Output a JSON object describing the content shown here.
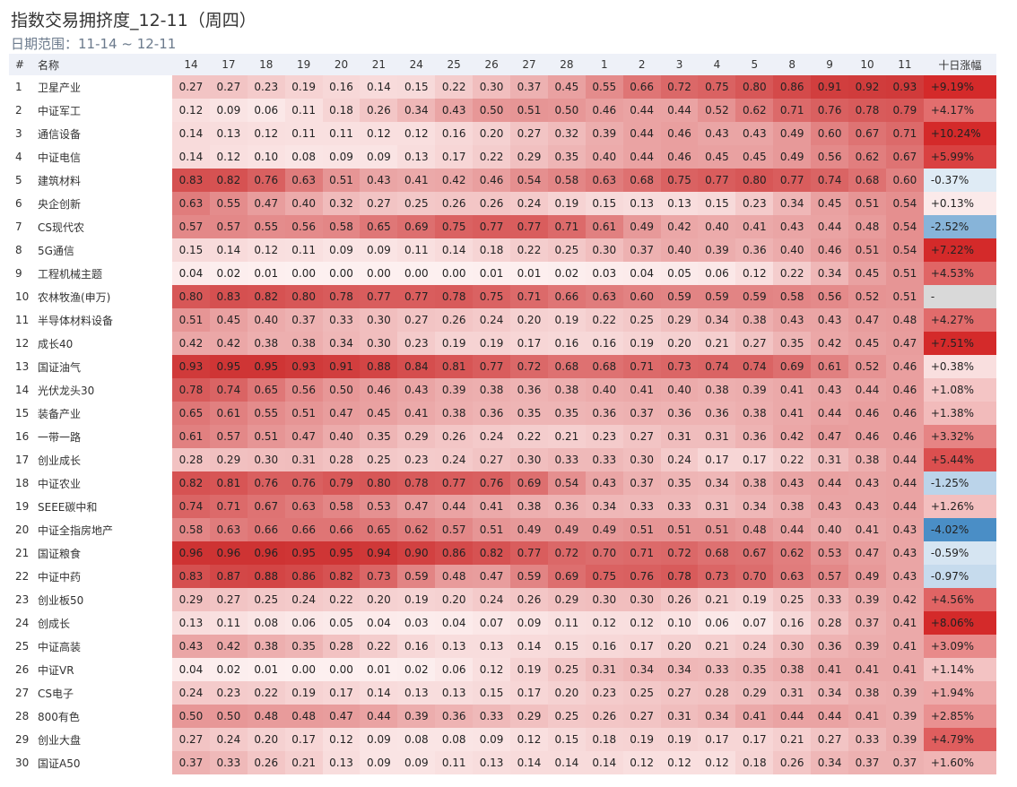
{
  "title": "指数交易拥挤度_12-11（周四）",
  "subtitle": "日期范围：11-14 ~ 12-11",
  "chart_data": {
    "type": "heatmap",
    "title": "指数交易拥挤度_12-11（周四）",
    "subtitle": "日期范围：11-14 ~ 12-11",
    "headers": {
      "index": "#",
      "name": "名称",
      "change": "十日涨幅"
    },
    "dates": [
      "14",
      "17",
      "18",
      "19",
      "20",
      "21",
      "24",
      "25",
      "26",
      "27",
      "28",
      "1",
      "2",
      "3",
      "4",
      "5",
      "8",
      "9",
      "10",
      "11"
    ],
    "colors": {
      "cell_low": "#fdf0f0",
      "cell_high": "#cc2a2a",
      "up_strong": "#d42a2a",
      "down_strong": "#4a8ec6",
      "neutral": "#d9d9d9",
      "header_bg": "#eef1f8"
    },
    "rows": [
      {
        "idx": "1",
        "name": "卫星产业",
        "values": [
          0.27,
          0.27,
          0.23,
          0.19,
          0.16,
          0.14,
          0.15,
          0.22,
          0.3,
          0.37,
          0.45,
          0.55,
          0.66,
          0.72,
          0.75,
          0.8,
          0.86,
          0.91,
          0.92,
          0.93
        ],
        "change_text": "+9.19%",
        "change": 9.19
      },
      {
        "idx": "2",
        "name": "中证军工",
        "values": [
          0.12,
          0.09,
          0.06,
          0.11,
          0.18,
          0.26,
          0.34,
          0.43,
          0.5,
          0.51,
          0.5,
          0.46,
          0.44,
          0.44,
          0.52,
          0.62,
          0.71,
          0.76,
          0.78,
          0.79
        ],
        "change_text": "+4.17%",
        "change": 4.17
      },
      {
        "idx": "3",
        "name": "通信设备",
        "values": [
          0.14,
          0.13,
          0.12,
          0.11,
          0.11,
          0.12,
          0.12,
          0.16,
          0.2,
          0.27,
          0.32,
          0.39,
          0.44,
          0.46,
          0.43,
          0.43,
          0.49,
          0.6,
          0.67,
          0.71
        ],
        "change_text": "+10.24%",
        "change": 10.24
      },
      {
        "idx": "4",
        "name": "中证电信",
        "values": [
          0.14,
          0.12,
          0.1,
          0.08,
          0.09,
          0.09,
          0.13,
          0.17,
          0.22,
          0.29,
          0.35,
          0.4,
          0.44,
          0.46,
          0.45,
          0.45,
          0.49,
          0.56,
          0.62,
          0.67
        ],
        "change_text": "+5.99%",
        "change": 5.99
      },
      {
        "idx": "5",
        "name": "建筑材料",
        "values": [
          0.83,
          0.82,
          0.76,
          0.63,
          0.51,
          0.43,
          0.41,
          0.42,
          0.46,
          0.54,
          0.58,
          0.63,
          0.68,
          0.75,
          0.77,
          0.8,
          0.77,
          0.74,
          0.68,
          0.6
        ],
        "change_text": "-0.37%",
        "change": -0.37
      },
      {
        "idx": "6",
        "name": "央企创新",
        "values": [
          0.63,
          0.55,
          0.47,
          0.4,
          0.32,
          0.27,
          0.25,
          0.26,
          0.26,
          0.24,
          0.19,
          0.15,
          0.13,
          0.13,
          0.15,
          0.23,
          0.34,
          0.45,
          0.51,
          0.54
        ],
        "change_text": "+0.13%",
        "change": 0.13
      },
      {
        "idx": "7",
        "name": "CS现代农",
        "values": [
          0.57,
          0.57,
          0.55,
          0.56,
          0.58,
          0.65,
          0.69,
          0.75,
          0.77,
          0.77,
          0.71,
          0.61,
          0.49,
          0.42,
          0.4,
          0.41,
          0.43,
          0.44,
          0.48,
          0.54
        ],
        "change_text": "-2.52%",
        "change": -2.52
      },
      {
        "idx": "8",
        "name": "5G通信",
        "values": [
          0.15,
          0.14,
          0.12,
          0.11,
          0.09,
          0.09,
          0.11,
          0.14,
          0.18,
          0.22,
          0.25,
          0.3,
          0.37,
          0.4,
          0.39,
          0.36,
          0.4,
          0.46,
          0.51,
          0.54
        ],
        "change_text": "+7.22%",
        "change": 7.22
      },
      {
        "idx": "9",
        "name": "工程机械主题",
        "values": [
          0.04,
          0.02,
          0.01,
          0.0,
          0.0,
          0.0,
          0.0,
          0.0,
          0.01,
          0.01,
          0.02,
          0.03,
          0.04,
          0.05,
          0.06,
          0.12,
          0.22,
          0.34,
          0.45,
          0.51
        ],
        "change_text": "+4.53%",
        "change": 4.53
      },
      {
        "idx": "10",
        "name": "农林牧渔(申万)",
        "values": [
          0.8,
          0.83,
          0.82,
          0.8,
          0.78,
          0.77,
          0.77,
          0.78,
          0.75,
          0.71,
          0.66,
          0.63,
          0.6,
          0.59,
          0.59,
          0.59,
          0.58,
          0.56,
          0.52,
          0.51
        ],
        "change_text": "-",
        "change": null
      },
      {
        "idx": "11",
        "name": "半导体材料设备",
        "values": [
          0.51,
          0.45,
          0.4,
          0.37,
          0.33,
          0.3,
          0.27,
          0.26,
          0.24,
          0.2,
          0.19,
          0.22,
          0.25,
          0.29,
          0.34,
          0.38,
          0.43,
          0.43,
          0.47,
          0.48
        ],
        "change_text": "+4.27%",
        "change": 4.27
      },
      {
        "idx": "12",
        "name": "成长40",
        "values": [
          0.42,
          0.42,
          0.38,
          0.38,
          0.34,
          0.3,
          0.23,
          0.19,
          0.19,
          0.17,
          0.16,
          0.16,
          0.19,
          0.2,
          0.21,
          0.27,
          0.35,
          0.42,
          0.45,
          0.47
        ],
        "change_text": "+7.51%",
        "change": 7.51
      },
      {
        "idx": "13",
        "name": "国证油气",
        "values": [
          0.93,
          0.95,
          0.95,
          0.93,
          0.91,
          0.88,
          0.84,
          0.81,
          0.77,
          0.72,
          0.68,
          0.68,
          0.71,
          0.73,
          0.74,
          0.74,
          0.69,
          0.61,
          0.52,
          0.46
        ],
        "change_text": "+0.38%",
        "change": 0.38
      },
      {
        "idx": "14",
        "name": "光伏龙头30",
        "values": [
          0.78,
          0.74,
          0.65,
          0.56,
          0.5,
          0.46,
          0.43,
          0.39,
          0.38,
          0.36,
          0.38,
          0.4,
          0.41,
          0.4,
          0.38,
          0.39,
          0.41,
          0.43,
          0.44,
          0.46
        ],
        "change_text": "+1.08%",
        "change": 1.08
      },
      {
        "idx": "15",
        "name": "装备产业",
        "values": [
          0.65,
          0.61,
          0.55,
          0.51,
          0.47,
          0.45,
          0.41,
          0.38,
          0.36,
          0.35,
          0.35,
          0.36,
          0.37,
          0.36,
          0.36,
          0.38,
          0.41,
          0.44,
          0.46,
          0.46
        ],
        "change_text": "+1.38%",
        "change": 1.38
      },
      {
        "idx": "16",
        "name": "一带一路",
        "values": [
          0.61,
          0.57,
          0.51,
          0.47,
          0.4,
          0.35,
          0.29,
          0.26,
          0.24,
          0.22,
          0.21,
          0.23,
          0.27,
          0.31,
          0.31,
          0.36,
          0.42,
          0.47,
          0.46,
          0.46
        ],
        "change_text": "+3.32%",
        "change": 3.32
      },
      {
        "idx": "17",
        "name": "创业成长",
        "values": [
          0.28,
          0.29,
          0.3,
          0.31,
          0.28,
          0.25,
          0.23,
          0.24,
          0.27,
          0.3,
          0.33,
          0.33,
          0.3,
          0.24,
          0.17,
          0.17,
          0.22,
          0.31,
          0.38,
          0.44
        ],
        "change_text": "+5.44%",
        "change": 5.44
      },
      {
        "idx": "18",
        "name": "中证农业",
        "values": [
          0.82,
          0.81,
          0.76,
          0.76,
          0.79,
          0.8,
          0.78,
          0.77,
          0.76,
          0.69,
          0.54,
          0.43,
          0.37,
          0.35,
          0.34,
          0.38,
          0.43,
          0.44,
          0.43,
          0.44
        ],
        "change_text": "-1.25%",
        "change": -1.25
      },
      {
        "idx": "19",
        "name": "SEEE碳中和",
        "values": [
          0.74,
          0.71,
          0.67,
          0.63,
          0.58,
          0.53,
          0.47,
          0.44,
          0.41,
          0.38,
          0.36,
          0.34,
          0.33,
          0.33,
          0.31,
          0.34,
          0.38,
          0.43,
          0.43,
          0.44
        ],
        "change_text": "+1.26%",
        "change": 1.26
      },
      {
        "idx": "20",
        "name": "中证全指房地产",
        "values": [
          0.58,
          0.63,
          0.66,
          0.66,
          0.66,
          0.65,
          0.62,
          0.57,
          0.51,
          0.49,
          0.49,
          0.49,
          0.51,
          0.51,
          0.51,
          0.48,
          0.44,
          0.4,
          0.41,
          0.43
        ],
        "change_text": "-4.02%",
        "change": -4.02
      },
      {
        "idx": "21",
        "name": "国证粮食",
        "values": [
          0.96,
          0.96,
          0.96,
          0.95,
          0.95,
          0.94,
          0.9,
          0.86,
          0.82,
          0.77,
          0.72,
          0.7,
          0.71,
          0.72,
          0.68,
          0.67,
          0.62,
          0.53,
          0.47,
          0.43
        ],
        "change_text": "-0.59%",
        "change": -0.59
      },
      {
        "idx": "22",
        "name": "中证中药",
        "values": [
          0.83,
          0.87,
          0.88,
          0.86,
          0.82,
          0.73,
          0.59,
          0.48,
          0.47,
          0.59,
          0.69,
          0.75,
          0.76,
          0.78,
          0.73,
          0.7,
          0.63,
          0.57,
          0.49,
          0.43
        ],
        "change_text": "-0.97%",
        "change": -0.97
      },
      {
        "idx": "23",
        "name": "创业板50",
        "values": [
          0.29,
          0.27,
          0.25,
          0.24,
          0.22,
          0.2,
          0.19,
          0.2,
          0.24,
          0.26,
          0.29,
          0.3,
          0.3,
          0.26,
          0.21,
          0.19,
          0.25,
          0.33,
          0.39,
          0.42
        ],
        "change_text": "+4.56%",
        "change": 4.56
      },
      {
        "idx": "24",
        "name": "创成长",
        "values": [
          0.13,
          0.11,
          0.08,
          0.06,
          0.05,
          0.04,
          0.03,
          0.04,
          0.07,
          0.09,
          0.11,
          0.12,
          0.12,
          0.1,
          0.06,
          0.07,
          0.16,
          0.28,
          0.37,
          0.41
        ],
        "change_text": "+8.06%",
        "change": 8.06
      },
      {
        "idx": "25",
        "name": "中证高装",
        "values": [
          0.43,
          0.42,
          0.38,
          0.35,
          0.28,
          0.22,
          0.16,
          0.13,
          0.13,
          0.14,
          0.15,
          0.16,
          0.17,
          0.2,
          0.21,
          0.24,
          0.3,
          0.36,
          0.39,
          0.41
        ],
        "change_text": "+3.09%",
        "change": 3.09
      },
      {
        "idx": "26",
        "name": "中证VR",
        "values": [
          0.04,
          0.02,
          0.01,
          0.0,
          0.0,
          0.01,
          0.02,
          0.06,
          0.12,
          0.19,
          0.25,
          0.31,
          0.34,
          0.34,
          0.33,
          0.35,
          0.38,
          0.41,
          0.41,
          0.41
        ],
        "change_text": "+1.14%",
        "change": 1.14
      },
      {
        "idx": "27",
        "name": "CS电子",
        "values": [
          0.24,
          0.23,
          0.22,
          0.19,
          0.17,
          0.14,
          0.13,
          0.13,
          0.15,
          0.17,
          0.2,
          0.23,
          0.25,
          0.27,
          0.28,
          0.29,
          0.31,
          0.34,
          0.38,
          0.39
        ],
        "change_text": "+1.94%",
        "change": 1.94
      },
      {
        "idx": "28",
        "name": "800有色",
        "values": [
          0.5,
          0.5,
          0.48,
          0.48,
          0.47,
          0.44,
          0.39,
          0.36,
          0.33,
          0.29,
          0.25,
          0.26,
          0.27,
          0.31,
          0.34,
          0.41,
          0.44,
          0.44,
          0.41,
          0.39
        ],
        "change_text": "+2.85%",
        "change": 2.85
      },
      {
        "idx": "29",
        "name": "创业大盘",
        "values": [
          0.27,
          0.24,
          0.2,
          0.17,
          0.12,
          0.09,
          0.08,
          0.08,
          0.09,
          0.12,
          0.15,
          0.18,
          0.19,
          0.19,
          0.17,
          0.17,
          0.21,
          0.27,
          0.33,
          0.39
        ],
        "change_text": "+4.79%",
        "change": 4.79
      },
      {
        "idx": "30",
        "name": "国证A50",
        "values": [
          0.37,
          0.33,
          0.26,
          0.21,
          0.13,
          0.09,
          0.09,
          0.11,
          0.13,
          0.14,
          0.14,
          0.14,
          0.12,
          0.12,
          0.12,
          0.18,
          0.26,
          0.34,
          0.37,
          0.37
        ],
        "change_text": "+1.60%",
        "change": 1.6
      }
    ]
  }
}
